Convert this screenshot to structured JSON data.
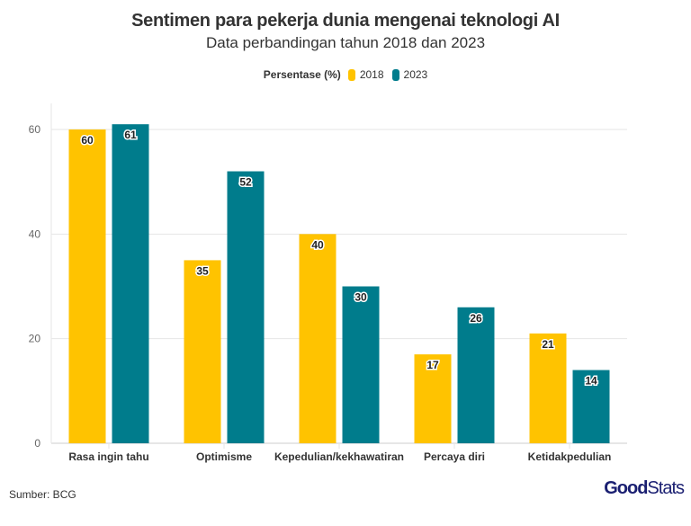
{
  "chart_data": {
    "type": "bar",
    "title": "Sentimen para pekerja dunia mengenai teknologi AI",
    "subtitle": "Data perbandingan tahun 2018 dan 2023",
    "legend_title": "Persentase (%)",
    "legend_position": "top",
    "categories": [
      "Rasa ingin tahu",
      "Optimisme",
      "Kepedulian/kekhawatiran",
      "Percaya diri",
      "Ketidakpedulian"
    ],
    "series": [
      {
        "name": "2018",
        "color": "#FFC300",
        "values": [
          60,
          35,
          40,
          17,
          21
        ]
      },
      {
        "name": "2023",
        "color": "#007C8C",
        "values": [
          61,
          52,
          30,
          26,
          14
        ]
      }
    ],
    "ylim": [
      0,
      65
    ],
    "yticks": [
      0,
      20,
      40,
      60
    ],
    "grid": true
  },
  "footer": {
    "source": "Sumber: BCG",
    "logo": "GoodStats"
  }
}
